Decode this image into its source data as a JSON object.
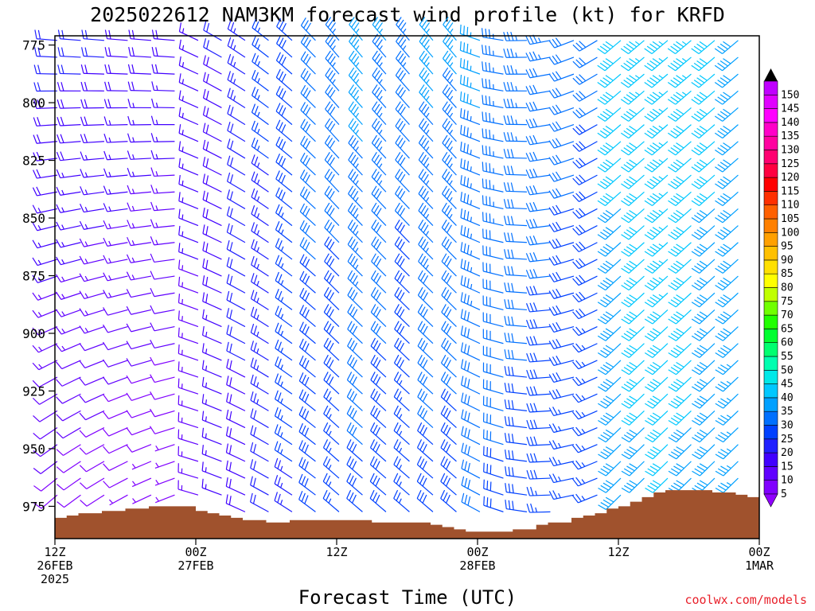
{
  "title": "2025022612 NAM3KM forecast wind profile (kt) for KRFD",
  "xlabel": "Forecast Time (UTC)",
  "credit": "coolwx.com/models",
  "colors": {
    "terrain": "#a0522d",
    "frame": "#000000",
    "credit": "#e8202a"
  },
  "chart_data": {
    "type": "wind-barb-profile",
    "title": "2025022612 NAM3KM forecast wind profile (kt) for KRFD",
    "xlabel": "Forecast Time (UTC)",
    "ylabel": "",
    "y_axis": {
      "scale": "pressure (inverted)",
      "range": [
        771,
        989
      ],
      "ticks": [
        775,
        800,
        825,
        850,
        875,
        900,
        925,
        950,
        975
      ]
    },
    "x_axis": {
      "range_hours": [
        0,
        60
      ],
      "ticks": [
        {
          "hour": 0,
          "lines": [
            "12Z",
            "26FEB",
            "2025"
          ]
        },
        {
          "hour": 12,
          "lines": [
            "00Z",
            "27FEB"
          ]
        },
        {
          "hour": 24,
          "lines": [
            "12Z"
          ]
        },
        {
          "hour": 36,
          "lines": [
            "00Z",
            "28FEB"
          ]
        },
        {
          "hour": 48,
          "lines": [
            "12Z"
          ]
        },
        {
          "hour": 60,
          "lines": [
            "00Z",
            "1MAR"
          ]
        }
      ]
    },
    "colorbar": {
      "unit": "kt",
      "levels": [
        5,
        10,
        15,
        20,
        25,
        30,
        35,
        40,
        45,
        50,
        55,
        60,
        65,
        70,
        75,
        80,
        85,
        90,
        95,
        100,
        105,
        110,
        115,
        120,
        125,
        130,
        135,
        140,
        145,
        150
      ],
      "colors": [
        "#8000ff",
        "#6000ff",
        "#4000ff",
        "#2020ff",
        "#0040ff",
        "#0070ff",
        "#00a0ff",
        "#00c8ff",
        "#00e8e8",
        "#00ffb0",
        "#00ff70",
        "#00ff30",
        "#20ff00",
        "#70ff00",
        "#c0ff00",
        "#ffff00",
        "#ffe000",
        "#ffc000",
        "#ffa000",
        "#ff8000",
        "#ff6000",
        "#ff3000",
        "#ff0000",
        "#ff0040",
        "#ff0070",
        "#ff00a0",
        "#ff00c8",
        "#ff00ff",
        "#e000ff",
        "#c000ff"
      ],
      "label_levels": [
        150,
        145,
        140,
        135,
        130,
        125,
        120,
        115,
        110,
        105,
        100,
        95,
        90,
        85,
        80,
        75,
        70,
        65,
        60,
        55,
        50,
        45,
        40,
        35,
        30,
        25,
        20,
        15,
        10,
        5
      ]
    },
    "surface_pressure": [
      [
        0,
        980
      ],
      [
        1,
        979
      ],
      [
        2,
        978
      ],
      [
        4,
        977
      ],
      [
        6,
        976
      ],
      [
        8,
        975
      ],
      [
        10,
        975
      ],
      [
        11,
        975
      ],
      [
        12,
        977
      ],
      [
        13,
        978
      ],
      [
        14,
        979
      ],
      [
        15,
        980
      ],
      [
        16,
        981
      ],
      [
        17,
        981
      ],
      [
        18,
        982
      ],
      [
        20,
        981
      ],
      [
        22,
        981
      ],
      [
        24,
        981
      ],
      [
        26,
        981
      ],
      [
        27,
        982
      ],
      [
        28,
        982
      ],
      [
        30,
        982
      ],
      [
        32,
        983
      ],
      [
        33,
        984
      ],
      [
        34,
        985
      ],
      [
        35,
        986
      ],
      [
        36,
        986
      ],
      [
        37,
        986
      ],
      [
        38,
        986
      ],
      [
        39,
        985
      ],
      [
        40,
        985
      ],
      [
        41,
        983
      ],
      [
        42,
        982
      ],
      [
        44,
        980
      ],
      [
        45,
        979
      ],
      [
        46,
        978
      ],
      [
        47,
        976
      ],
      [
        48,
        975
      ],
      [
        49,
        973
      ],
      [
        50,
        971
      ],
      [
        51,
        969
      ],
      [
        52,
        968
      ],
      [
        53,
        968
      ],
      [
        54,
        968
      ],
      [
        55,
        968
      ],
      [
        56,
        969
      ],
      [
        57,
        969
      ],
      [
        58,
        970
      ],
      [
        59,
        971
      ],
      [
        60,
        972
      ]
    ],
    "wind_summary": [
      {
        "period": "12Z 26FEB - 00Z 27FEB",
        "direction": "SW to W",
        "speed_kt": [
          5,
          25
        ]
      },
      {
        "period": "00Z 27FEB - 12Z 27FEB",
        "direction": "NW",
        "speed_kt": [
          20,
          35
        ]
      },
      {
        "period": "12Z 27FEB - 00Z 28FEB",
        "direction": "NW",
        "speed_kt": [
          25,
          40
        ]
      },
      {
        "period": "00Z 28FEB - 12Z 28FEB",
        "direction": "W to SW",
        "speed_kt": [
          20,
          40
        ]
      },
      {
        "period": "12Z 28FEB - 00Z 1MAR",
        "direction": "SW",
        "speed_kt": [
          30,
          50
        ]
      }
    ]
  }
}
